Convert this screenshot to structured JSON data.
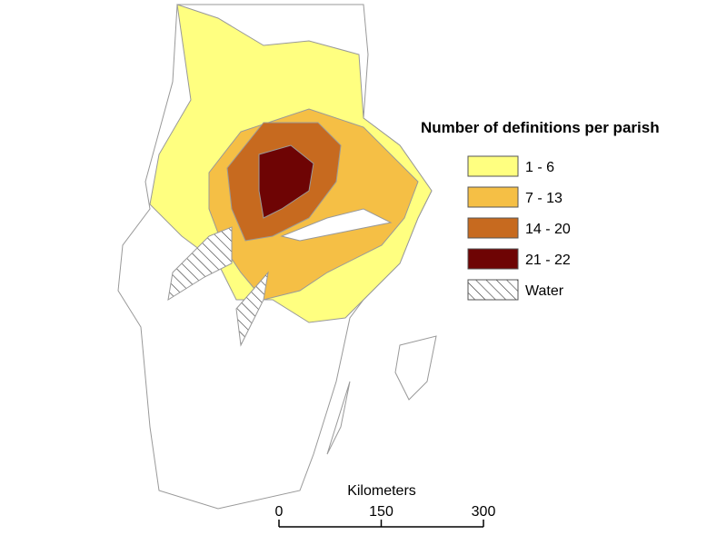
{
  "legend": {
    "title": "Number of definitions per parish",
    "items": [
      {
        "label": "1 - 6",
        "color": "#ffff80"
      },
      {
        "label": "7 - 13",
        "color": "#f5bf45"
      },
      {
        "label": "14 - 20",
        "color": "#c76a1f"
      },
      {
        "label": "21 - 22",
        "color": "#6e0404"
      },
      {
        "label": "Water",
        "color": "url(#hatch)"
      }
    ]
  },
  "scale_bar": {
    "title": "Kilometers",
    "ticks": [
      0,
      150,
      300
    ]
  }
}
